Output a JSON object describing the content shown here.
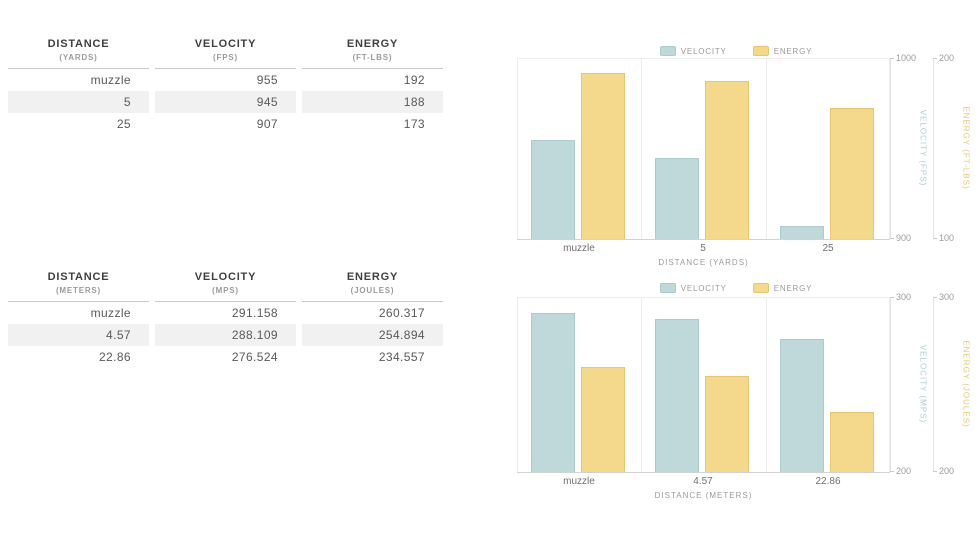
{
  "colors": {
    "velocity_fill": "#bfd9da",
    "velocity_border": "#abcbcc",
    "velocity_label": "#a9d0d1",
    "energy_fill": "#f4d88c",
    "energy_border": "#e9c573",
    "energy_label": "#e8c77f",
    "stripe": "#f1f1f1",
    "muted_text": "#9b9b9b"
  },
  "tables": [
    {
      "columns": [
        {
          "name": "DISTANCE",
          "unit": "(YARDS)"
        },
        {
          "name": "VELOCITY",
          "unit": "(FPS)"
        },
        {
          "name": "ENERGY",
          "unit": "(FT-LBS)"
        }
      ],
      "rows": [
        [
          "muzzle",
          "955",
          "192"
        ],
        [
          "5",
          "945",
          "188"
        ],
        [
          "25",
          "907",
          "173"
        ]
      ]
    },
    {
      "columns": [
        {
          "name": "DISTANCE",
          "unit": "(METERS)"
        },
        {
          "name": "VELOCITY",
          "unit": "(MPS)"
        },
        {
          "name": "ENERGY",
          "unit": "(JOULES)"
        }
      ],
      "rows": [
        [
          "muzzle",
          "291.158",
          "260.317"
        ],
        [
          "4.57",
          "288.109",
          "254.894"
        ],
        [
          "22.86",
          "276.524",
          "234.557"
        ]
      ]
    }
  ],
  "chart_data": [
    {
      "type": "bar",
      "categories": [
        "muzzle",
        "5",
        "25"
      ],
      "series": [
        {
          "name": "VELOCITY",
          "values": [
            955,
            945,
            907
          ],
          "axis": {
            "title": "VELOCITY (FPS)",
            "min": 900,
            "max": 1000,
            "ticks": [
              "1000",
              "900"
            ]
          }
        },
        {
          "name": "ENERGY",
          "values": [
            192,
            188,
            173
          ],
          "axis": {
            "title": "ENERGY (FT-LBS)",
            "min": 100,
            "max": 200,
            "ticks": [
              "200",
              "100"
            ]
          }
        }
      ],
      "xlabel": "DISTANCE (YARDS)",
      "legend_position": "top",
      "grid": "vertical-category-boundaries"
    },
    {
      "type": "bar",
      "categories": [
        "muzzle",
        "4.57",
        "22.86"
      ],
      "series": [
        {
          "name": "VELOCITY",
          "values": [
            291.158,
            288.109,
            276.524
          ],
          "axis": {
            "title": "VELOCITY (MPS)",
            "min": 200,
            "max": 300,
            "ticks": [
              "300",
              "200"
            ]
          }
        },
        {
          "name": "ENERGY",
          "values": [
            260.317,
            254.894,
            234.557
          ],
          "axis": {
            "title": "ENERGY (JOULES)",
            "min": 200,
            "max": 300,
            "ticks": [
              "300",
              "200"
            ]
          }
        }
      ],
      "xlabel": "DISTANCE (METERS)",
      "legend_position": "top",
      "grid": "vertical-category-boundaries"
    }
  ]
}
